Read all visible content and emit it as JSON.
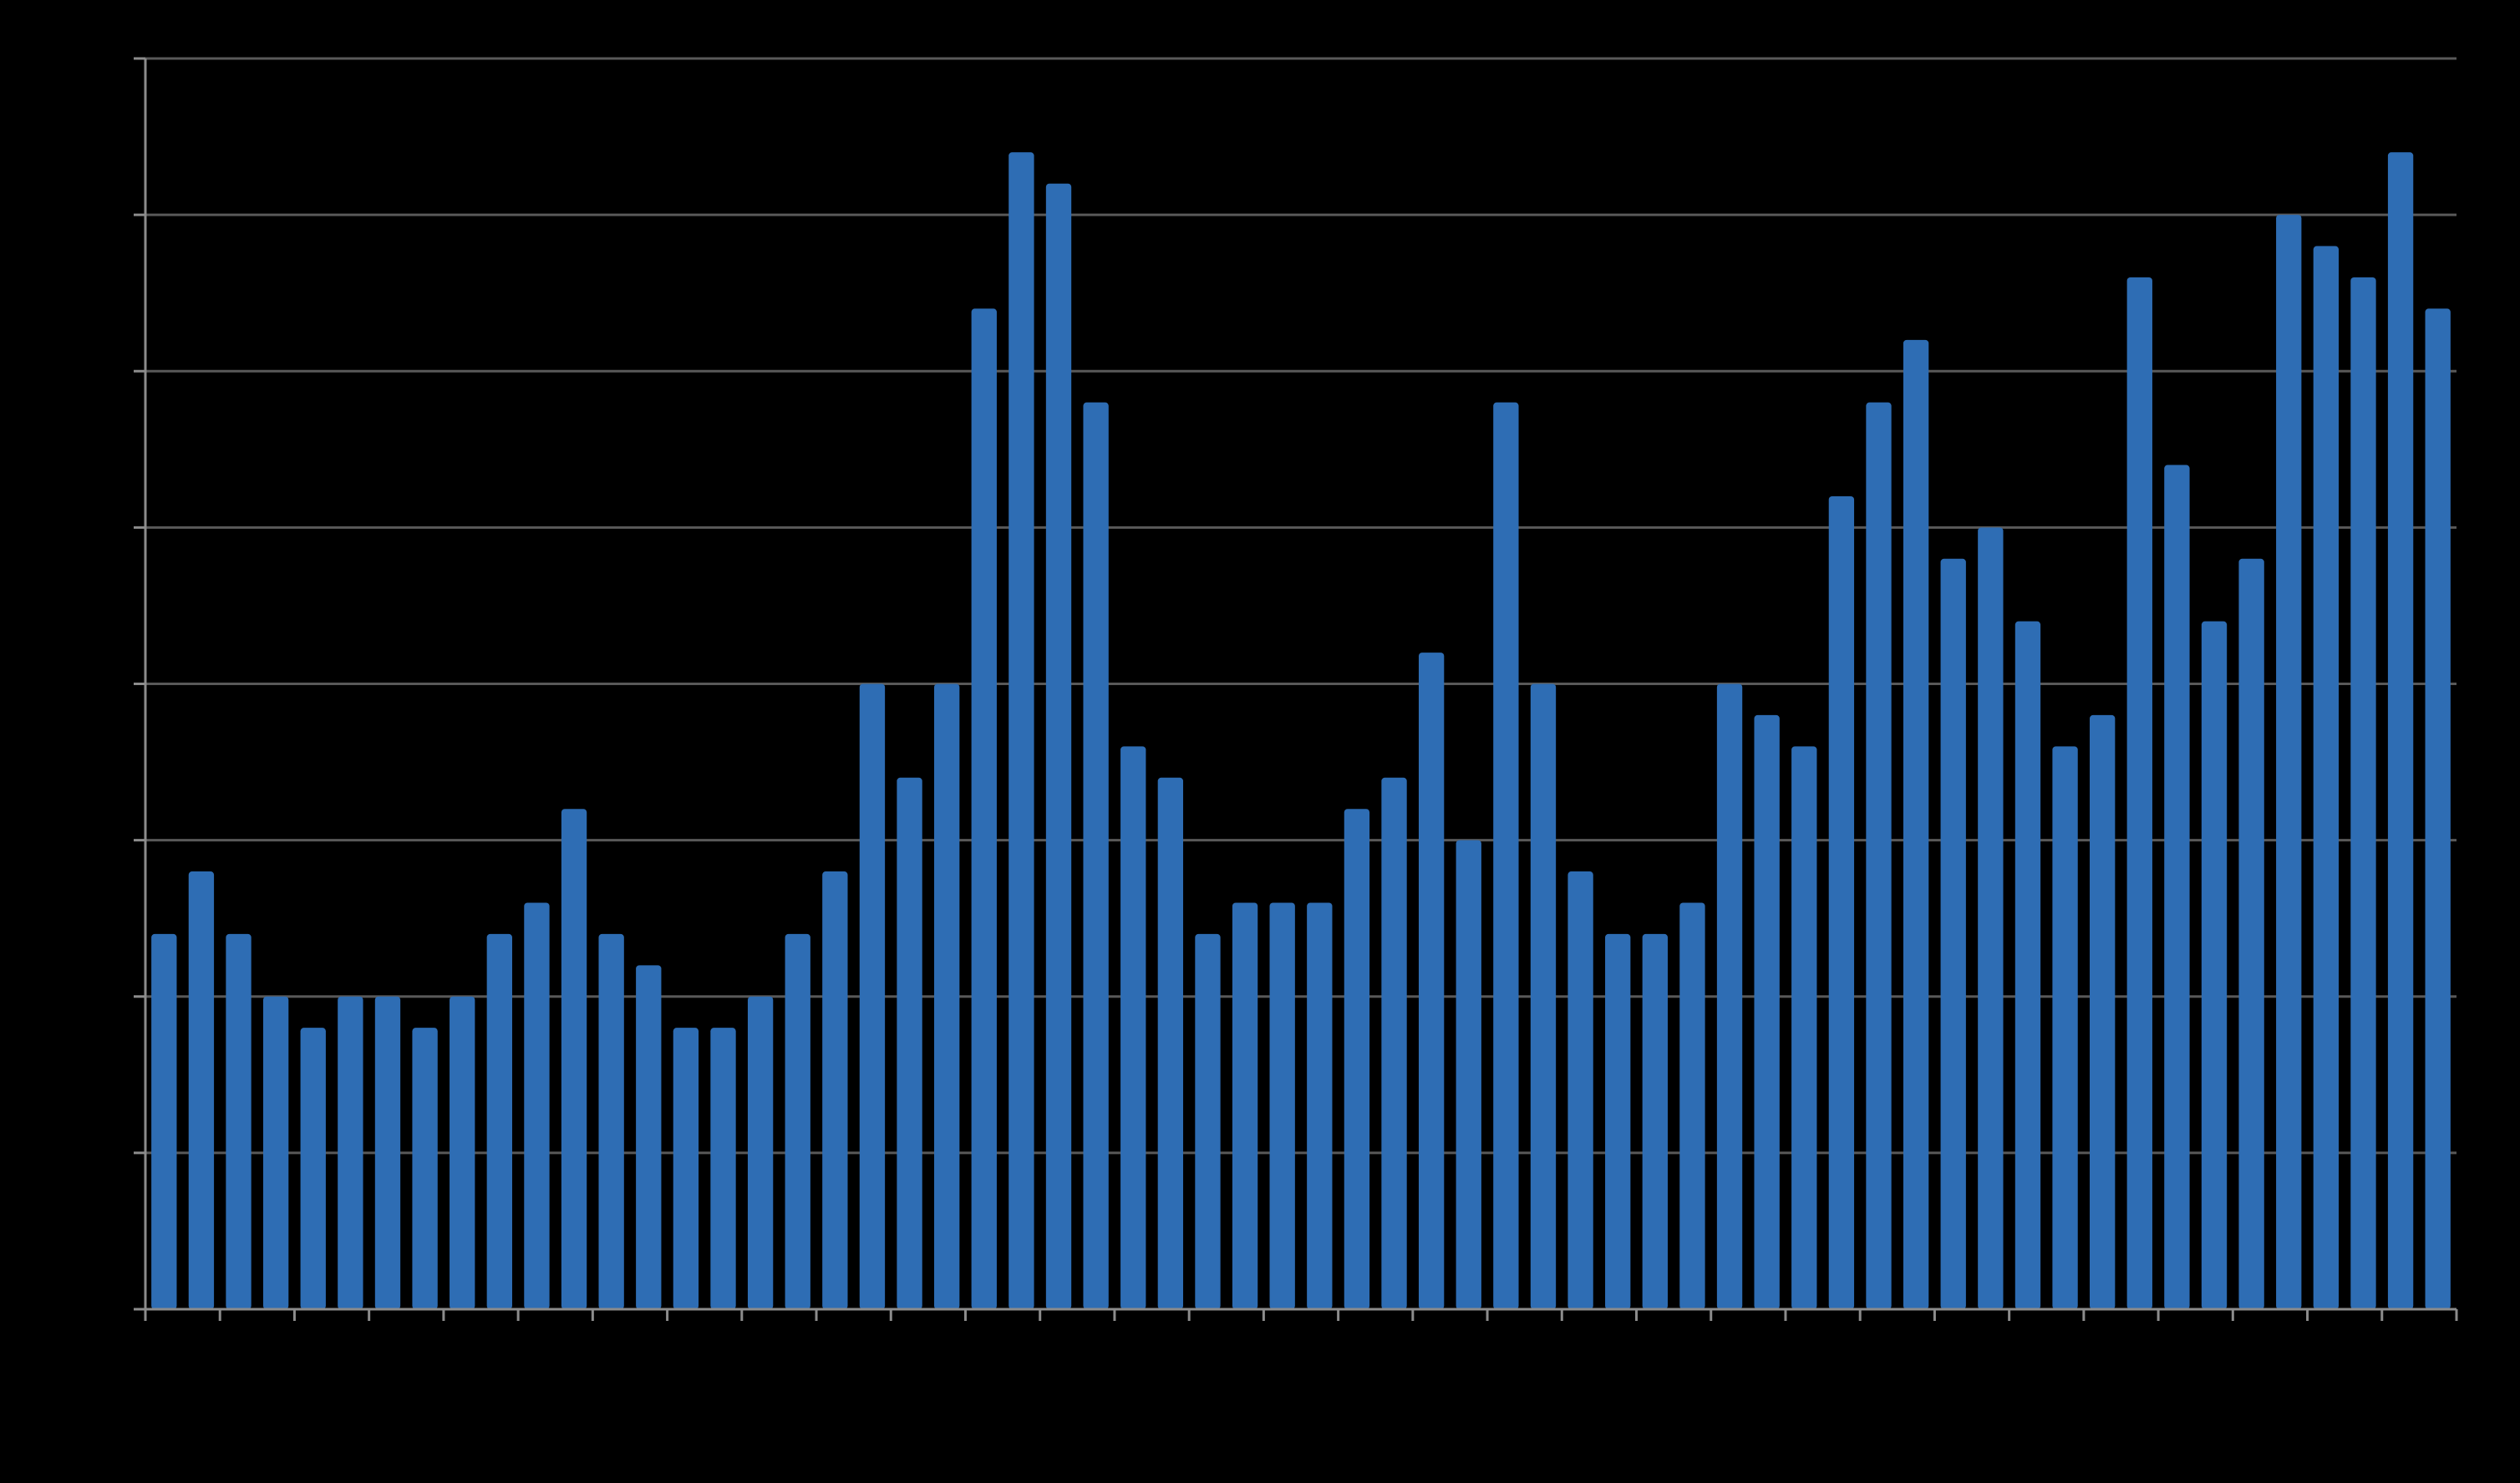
{
  "colors": {
    "background": "#000000",
    "bar": "#2E6DB4",
    "gridline": "#595959",
    "axis": "#8C8C8C"
  },
  "chart_data": {
    "type": "bar",
    "title": "",
    "xlabel": "",
    "ylabel": "",
    "ylim": [
      0,
      40
    ],
    "grid": true,
    "legend": "none",
    "tick_labels_visible": false,
    "x_tick_every": 2,
    "values": [
      12,
      14,
      12,
      10,
      9,
      10,
      10,
      9,
      10,
      12,
      13,
      16,
      12,
      11,
      9,
      9,
      10,
      12,
      14,
      20,
      17,
      20,
      32,
      37,
      36,
      29,
      18,
      17,
      12,
      13,
      13,
      13,
      16,
      17,
      21,
      15,
      29,
      20,
      14,
      12,
      12,
      13,
      20,
      19,
      18,
      26,
      29,
      31,
      24,
      25,
      22,
      18,
      19,
      33,
      27,
      22,
      24,
      35,
      34,
      33,
      37,
      32
    ]
  }
}
